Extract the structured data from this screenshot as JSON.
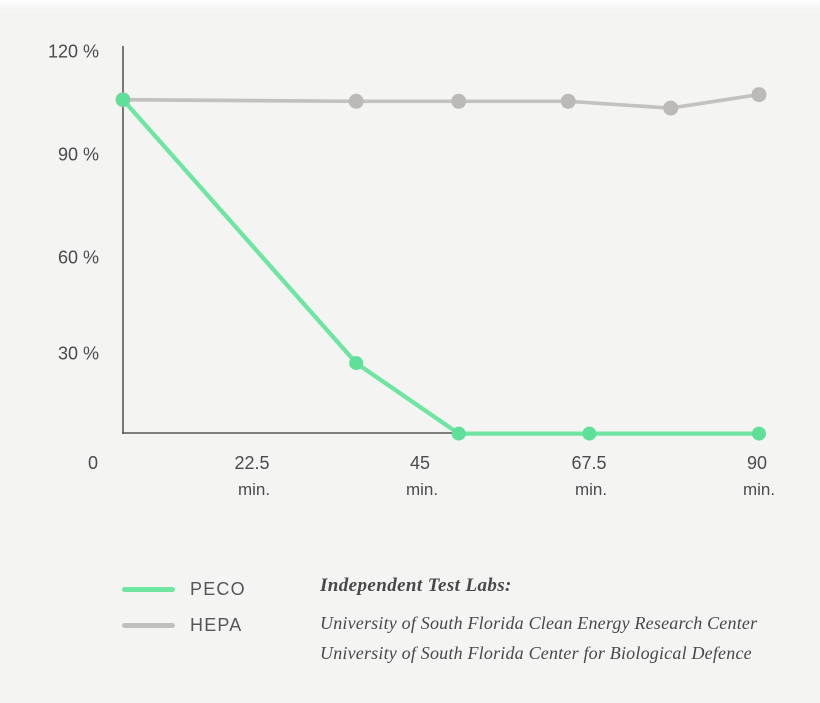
{
  "chart_data": {
    "type": "line",
    "x_unit": "min.",
    "x_range": [
      0,
      90
    ],
    "y_range": [
      0,
      120
    ],
    "grid": false,
    "legend_position": "bottom-left",
    "x_ticks": [
      {
        "value": "0",
        "unit": ""
      },
      {
        "value": "22.5",
        "unit": "min."
      },
      {
        "value": "45",
        "unit": "min."
      },
      {
        "value": "67.5",
        "unit": "min."
      },
      {
        "value": "90",
        "unit": "min."
      }
    ],
    "y_ticks": [
      "120 %",
      "90 %",
      "60 %",
      "30 %"
    ],
    "series": [
      {
        "name": "PECO",
        "color": "#6fe5a2",
        "dot_color": "#5ee099",
        "points": [
          {
            "t": 0,
            "pct": 105.5
          },
          {
            "t": 33,
            "pct": 27
          },
          {
            "t": 47.5,
            "pct": 6
          },
          {
            "t": 66,
            "pct": 6
          },
          {
            "t": 90,
            "pct": 6
          }
        ]
      },
      {
        "name": "HEPA",
        "color": "#c4c2c0",
        "dot_color": "#bcbab8",
        "points": [
          {
            "t": 0,
            "pct": 105.5
          },
          {
            "t": 33,
            "pct": 105
          },
          {
            "t": 47.5,
            "pct": 105
          },
          {
            "t": 63,
            "pct": 105
          },
          {
            "t": 77.5,
            "pct": 103
          },
          {
            "t": 90,
            "pct": 107
          }
        ]
      }
    ]
  },
  "legend": {
    "items": [
      {
        "label": "PECO",
        "color": "#6fe5a2"
      },
      {
        "label": "HEPA",
        "color": "#c1c0be"
      }
    ]
  },
  "footnote": {
    "heading": "Independent Test Labs:",
    "lines": [
      "University of South Florida Clean Energy Research Center",
      "University of South Florida Center for Biological Defence"
    ]
  },
  "colors": {
    "background": "#f4f4f3",
    "axis": "#58585a",
    "tick_text": "#4b4b4d",
    "peco_green": "#6fe5a2",
    "hepa_gray": "#c4c2c0"
  }
}
